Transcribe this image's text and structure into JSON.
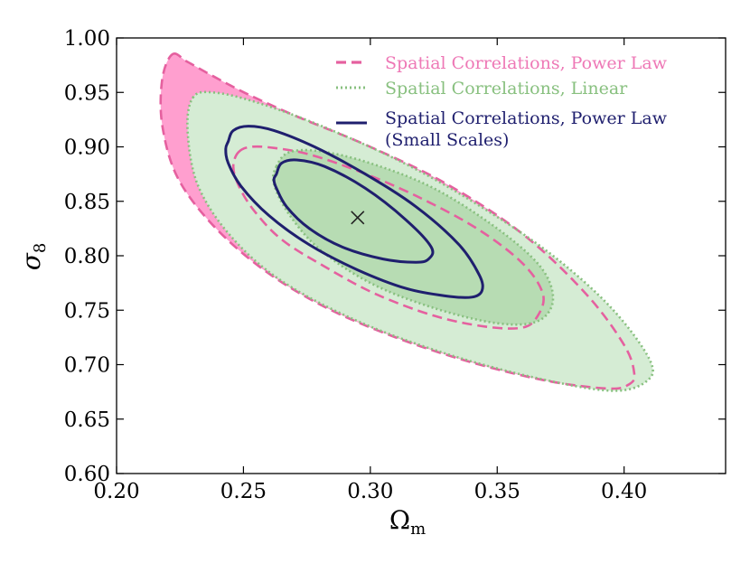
{
  "chart_data": {
    "type": "contour",
    "title": "",
    "xlabel": "Ω",
    "xlabel_sub": "m",
    "ylabel": "σ",
    "ylabel_sub": "8",
    "xlim": [
      0.2,
      0.44
    ],
    "ylim": [
      0.6,
      1.0
    ],
    "xticks": [
      "0.20",
      "0.25",
      "0.30",
      "0.35",
      "0.40"
    ],
    "yticks": [
      "0.60",
      "0.65",
      "0.70",
      "0.75",
      "0.80",
      "0.85",
      "0.90",
      "0.95",
      "1.00"
    ],
    "legend_position": "top-right",
    "best_fit": {
      "x": 0.295,
      "y": 0.835,
      "marker": "x"
    },
    "series": [
      {
        "name": "Spatial Correlations, Power Law",
        "color": "#e5609f",
        "fill": "#ff9fcf",
        "linestyle": "dashed",
        "contours": [
          {
            "level": "outer",
            "x": [
              0.222,
              0.228,
              0.238,
              0.252,
              0.272,
              0.3,
              0.33,
              0.36,
              0.385,
              0.4,
              0.404,
              0.402,
              0.394,
              0.37,
              0.34,
              0.31,
              0.282,
              0.258,
              0.238,
              0.224,
              0.218,
              0.218,
              0.222
            ],
            "y": [
              0.985,
              0.978,
              0.965,
              0.948,
              0.927,
              0.9,
              0.866,
              0.82,
              0.765,
              0.718,
              0.692,
              0.682,
              0.678,
              0.685,
              0.702,
              0.725,
              0.753,
              0.787,
              0.828,
              0.872,
              0.92,
              0.962,
              0.985
            ]
          },
          {
            "level": "inner",
            "x": [
              0.248,
              0.253,
              0.262,
              0.276,
              0.295,
              0.318,
              0.342,
              0.36,
              0.368,
              0.366,
              0.36,
              0.345,
              0.325,
              0.302,
              0.282,
              0.265,
              0.254,
              0.248,
              0.246,
              0.248
            ],
            "y": [
              0.895,
              0.9,
              0.899,
              0.893,
              0.878,
              0.855,
              0.825,
              0.793,
              0.765,
              0.745,
              0.734,
              0.735,
              0.745,
              0.765,
              0.79,
              0.815,
              0.842,
              0.865,
              0.882,
              0.895
            ]
          }
        ]
      },
      {
        "name": "Spatial Correlations, Linear",
        "color": "#88c07f",
        "fill": "#d5ecd4",
        "linestyle": "dotted",
        "contours": [
          {
            "level": "outer",
            "x": [
              0.23,
              0.238,
              0.255,
              0.282,
              0.315,
              0.345,
              0.372,
              0.395,
              0.41,
              0.409,
              0.395,
              0.365,
              0.33,
              0.295,
              0.265,
              0.245,
              0.232,
              0.228,
              0.23
            ],
            "y": [
              0.945,
              0.95,
              0.941,
              0.918,
              0.883,
              0.843,
              0.8,
              0.752,
              0.705,
              0.685,
              0.676,
              0.688,
              0.71,
              0.74,
              0.777,
              0.818,
              0.865,
              0.915,
              0.945
            ]
          },
          {
            "level": "inner",
            "x": [
              0.263,
              0.268,
              0.28,
              0.3,
              0.325,
              0.35,
              0.367,
              0.372,
              0.366,
              0.35,
              0.325,
              0.3,
              0.28,
              0.268,
              0.262,
              0.263
            ],
            "y": [
              0.882,
              0.895,
              0.896,
              0.885,
              0.862,
              0.825,
              0.79,
              0.76,
              0.74,
              0.738,
              0.752,
              0.775,
              0.806,
              0.838,
              0.866,
              0.882
            ]
          }
        ]
      },
      {
        "name": "Spatial Correlations, Power Law",
        "name_line2": "(Small Scales)",
        "color": "#1f1f6e",
        "fill": "none",
        "linestyle": "solid",
        "contours": [
          {
            "level": "outer",
            "x": [
              0.244,
              0.246,
              0.252,
              0.262,
              0.278,
              0.298,
              0.318,
              0.335,
              0.343,
              0.344,
              0.34,
              0.33,
              0.314,
              0.295,
              0.276,
              0.26,
              0.249,
              0.244,
              0.243,
              0.244
            ],
            "y": [
              0.905,
              0.915,
              0.919,
              0.915,
              0.9,
              0.875,
              0.845,
              0.81,
              0.782,
              0.768,
              0.762,
              0.763,
              0.77,
              0.787,
              0.81,
              0.837,
              0.864,
              0.885,
              0.898,
              0.905
            ]
          },
          {
            "level": "inner",
            "x": [
              0.263,
              0.265,
              0.271,
              0.282,
              0.298,
              0.314,
              0.324,
              0.323,
              0.318,
              0.305,
              0.289,
              0.276,
              0.267,
              0.263,
              0.262,
              0.263
            ],
            "y": [
              0.875,
              0.885,
              0.888,
              0.882,
              0.862,
              0.833,
              0.808,
              0.797,
              0.794,
              0.797,
              0.808,
              0.825,
              0.845,
              0.862,
              0.87,
              0.875
            ]
          }
        ]
      }
    ]
  }
}
